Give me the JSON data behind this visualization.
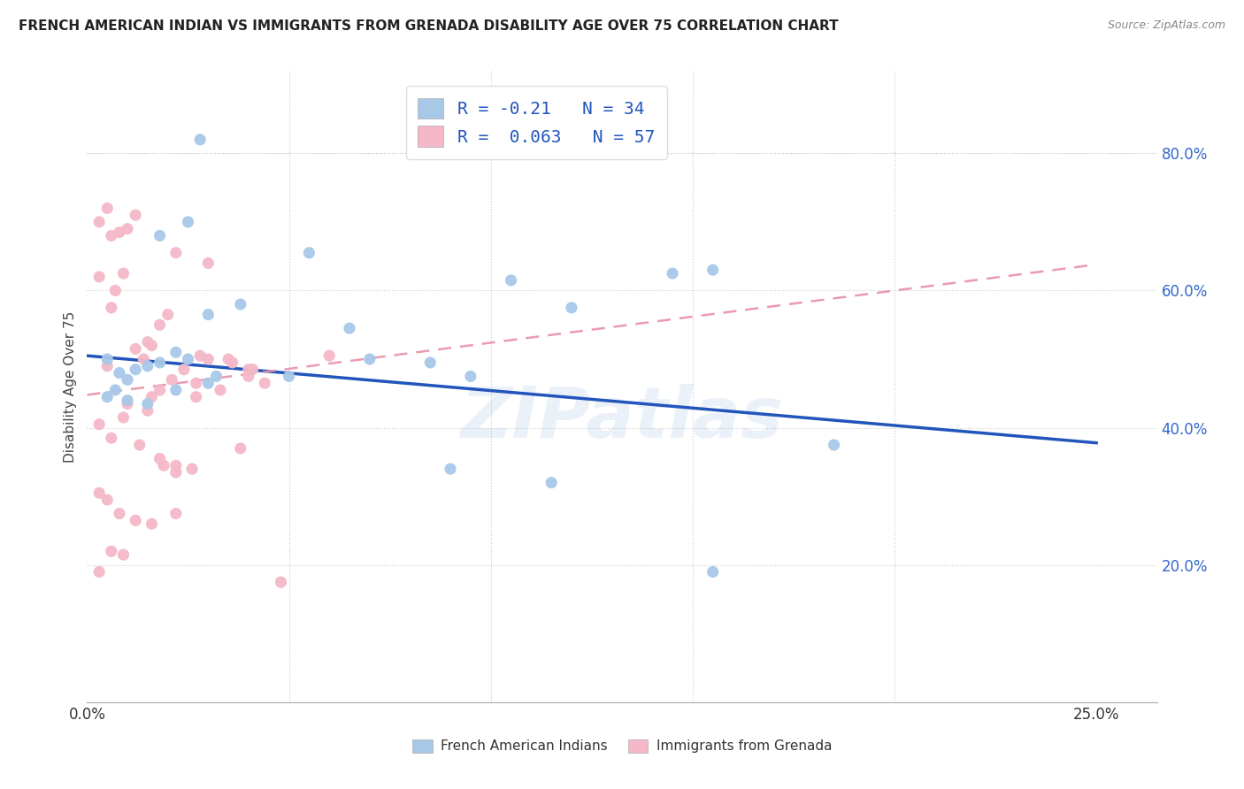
{
  "title": "FRENCH AMERICAN INDIAN VS IMMIGRANTS FROM GRENADA DISABILITY AGE OVER 75 CORRELATION CHART",
  "source": "Source: ZipAtlas.com",
  "ylabel": "Disability Age Over 75",
  "x_ticks": [
    0.0,
    0.05,
    0.1,
    0.15,
    0.2,
    0.25
  ],
  "y_ticks_right": [
    0.2,
    0.4,
    0.6,
    0.8
  ],
  "y_right_labels": [
    "20.0%",
    "40.0%",
    "60.0%",
    "80.0%"
  ],
  "xlim": [
    0.0,
    0.265
  ],
  "ylim": [
    0.0,
    0.92
  ],
  "blue_R": -0.21,
  "blue_N": 34,
  "pink_R": 0.063,
  "pink_N": 57,
  "blue_color": "#a8c8e8",
  "pink_color": "#f4b8c8",
  "blue_line_color": "#2255bb",
  "pink_line_color": "#e890a8",
  "legend_label_blue": "French American Indians",
  "legend_label_pink": "Immigrants from Grenada",
  "watermark": "ZIPatlas",
  "blue_line_x0": 0.0,
  "blue_line_y0": 0.505,
  "blue_line_x1": 0.25,
  "blue_line_y1": 0.378,
  "pink_line_x0": 0.0,
  "pink_line_y0": 0.448,
  "pink_line_x1": 0.25,
  "pink_line_y1": 0.638,
  "blue_scatter_x": [
    0.018,
    0.025,
    0.028,
    0.005,
    0.008,
    0.01,
    0.012,
    0.015,
    0.018,
    0.022,
    0.025,
    0.03,
    0.038,
    0.07,
    0.085,
    0.095,
    0.105,
    0.12,
    0.145,
    0.155,
    0.03,
    0.005,
    0.007,
    0.01,
    0.015,
    0.022,
    0.032,
    0.05,
    0.055,
    0.065,
    0.09,
    0.115,
    0.185,
    0.155
  ],
  "blue_scatter_y": [
    0.68,
    0.7,
    0.82,
    0.5,
    0.48,
    0.47,
    0.485,
    0.49,
    0.495,
    0.51,
    0.5,
    0.565,
    0.58,
    0.5,
    0.495,
    0.475,
    0.615,
    0.575,
    0.625,
    0.63,
    0.465,
    0.445,
    0.455,
    0.44,
    0.435,
    0.455,
    0.475,
    0.475,
    0.655,
    0.545,
    0.34,
    0.32,
    0.375,
    0.19
  ],
  "pink_scatter_x": [
    0.003,
    0.005,
    0.006,
    0.008,
    0.01,
    0.012,
    0.014,
    0.016,
    0.018,
    0.02,
    0.022,
    0.003,
    0.005,
    0.007,
    0.009,
    0.012,
    0.015,
    0.018,
    0.021,
    0.024,
    0.027,
    0.03,
    0.033,
    0.036,
    0.038,
    0.041,
    0.003,
    0.006,
    0.009,
    0.013,
    0.016,
    0.019,
    0.022,
    0.026,
    0.03,
    0.035,
    0.04,
    0.044,
    0.048,
    0.003,
    0.005,
    0.008,
    0.012,
    0.016,
    0.022,
    0.027,
    0.028,
    0.006,
    0.01,
    0.015,
    0.06,
    0.018,
    0.022,
    0.04,
    0.003,
    0.006,
    0.009
  ],
  "pink_scatter_y": [
    0.7,
    0.72,
    0.68,
    0.685,
    0.69,
    0.71,
    0.5,
    0.52,
    0.55,
    0.565,
    0.655,
    0.62,
    0.49,
    0.6,
    0.625,
    0.515,
    0.525,
    0.455,
    0.47,
    0.485,
    0.465,
    0.5,
    0.455,
    0.495,
    0.37,
    0.485,
    0.405,
    0.385,
    0.415,
    0.375,
    0.445,
    0.345,
    0.335,
    0.34,
    0.64,
    0.5,
    0.475,
    0.465,
    0.175,
    0.305,
    0.295,
    0.275,
    0.265,
    0.26,
    0.275,
    0.445,
    0.505,
    0.575,
    0.435,
    0.425,
    0.505,
    0.355,
    0.345,
    0.485,
    0.19,
    0.22,
    0.215
  ]
}
